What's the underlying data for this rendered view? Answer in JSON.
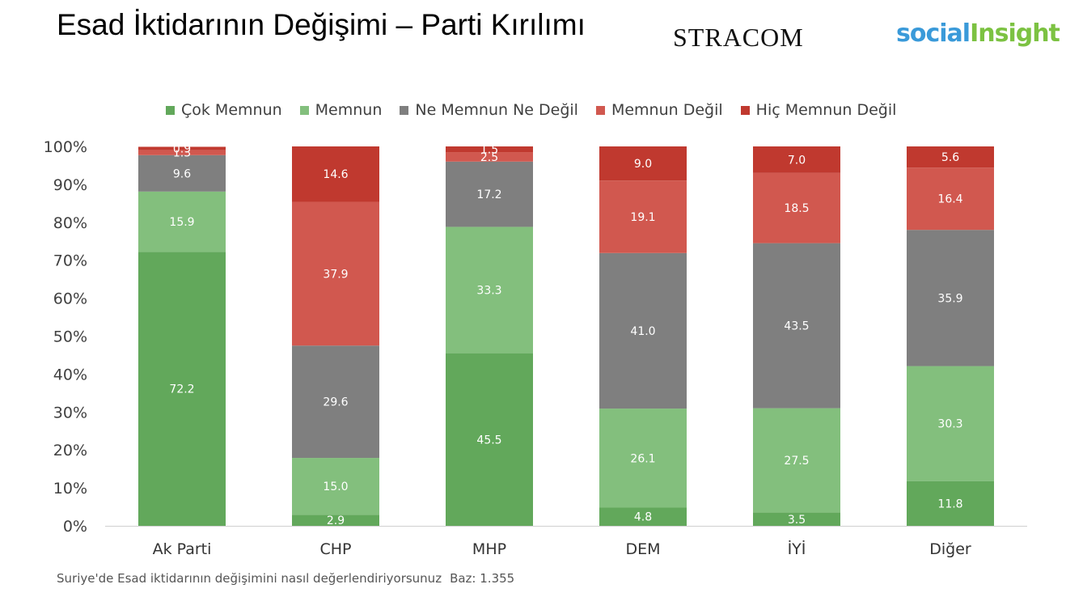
{
  "title": "Esad İktidarının Değişimi – Parti Kırılımı",
  "logos": {
    "stracom": "STRACOM",
    "social_a": "social",
    "social_b": "Insight"
  },
  "footnote": {
    "question": "Suriye'de Esad iktidarının değişimini nasıl değerlendiriyorsunuz",
    "base": "Baz: 1.355"
  },
  "chart_data": {
    "type": "bar",
    "stacked": true,
    "categories": [
      "Ak Parti",
      "CHP",
      "MHP",
      "DEM",
      "İYİ",
      "Diğer"
    ],
    "series": [
      {
        "name": "Çok Memnun",
        "color": "#62a85b",
        "values": [
          72.2,
          2.9,
          45.5,
          4.8,
          3.5,
          11.8
        ]
      },
      {
        "name": "Memnun",
        "color": "#83bf7d",
        "values": [
          15.9,
          15.0,
          33.3,
          26.1,
          27.5,
          30.3
        ]
      },
      {
        "name": "Ne Memnun Ne Değil",
        "color": "#7f7f7f",
        "values": [
          9.6,
          29.6,
          17.2,
          41.0,
          43.5,
          35.9
        ]
      },
      {
        "name": "Memnun Değil",
        "color": "#d1584f",
        "values": [
          1.3,
          37.9,
          2.5,
          19.1,
          18.5,
          16.4
        ]
      },
      {
        "name": "Hiç Memnun Değil",
        "color": "#c0392f",
        "values": [
          0.9,
          14.6,
          1.5,
          9.0,
          7.0,
          5.6
        ]
      }
    ],
    "ylim": [
      0,
      100
    ],
    "yticks": [
      "0%",
      "10%",
      "20%",
      "30%",
      "40%",
      "50%",
      "60%",
      "70%",
      "80%",
      "90%",
      "100%"
    ],
    "legend": "top",
    "grid": false
  }
}
